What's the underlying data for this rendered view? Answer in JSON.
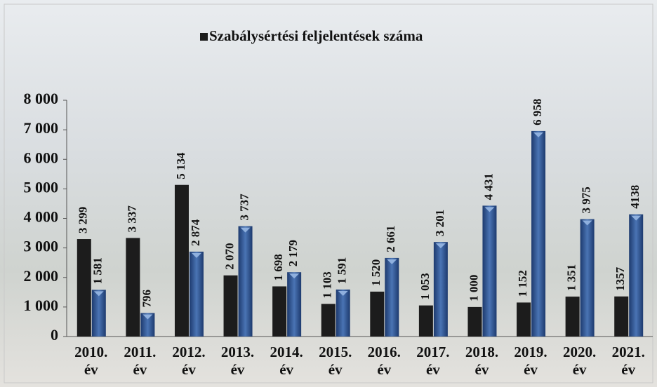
{
  "chart_data": {
    "type": "bar",
    "categories": [
      "2010. év",
      "2011. év",
      "2012. év",
      "2013. év",
      "2014. év",
      "2015. év",
      "2016. év",
      "2017. év",
      "2018. év",
      "2019. év",
      "2020. év",
      "2021. év"
    ],
    "series": [
      {
        "name": "Szabálysértési feljelentések száma",
        "color": "#1c1c1c",
        "values": [
          3299,
          3337,
          5134,
          2070,
          1698,
          1103,
          1520,
          1053,
          1000,
          1152,
          1351,
          1357
        ],
        "value_labels": [
          "3 299",
          "3 337",
          "5 134",
          "2 070",
          "1 698",
          "1 103",
          "1 520",
          "1 053",
          "1 000",
          "1 152",
          "1 351",
          "1357"
        ]
      },
      {
        "color": "#2f5592",
        "values": [
          1581,
          796,
          2874,
          3737,
          2179,
          1591,
          2661,
          3201,
          4431,
          6958,
          3975,
          4138
        ],
        "value_labels": [
          "1 581",
          "796",
          "2 874",
          "3 737",
          "2 179",
          "1 591",
          "2 661",
          "3 201",
          "4 431",
          "6 958",
          "3 975",
          "4138"
        ]
      }
    ],
    "ylim": [
      0,
      8000
    ],
    "yticks": [
      0,
      {
        "value": 1000,
        "label": "1 000"
      },
      {
        "value": 2000,
        "label": "2 000"
      },
      {
        "value": 3000,
        "label": "3 000"
      },
      {
        "value": 4000,
        "label": "4 000"
      },
      {
        "value": 5000,
        "label": "5 000"
      },
      {
        "value": 6000,
        "label": "6 000"
      },
      {
        "value": 7000,
        "label": "7 000"
      },
      {
        "value": 8000,
        "label": "8 000"
      }
    ],
    "legend": "top"
  }
}
